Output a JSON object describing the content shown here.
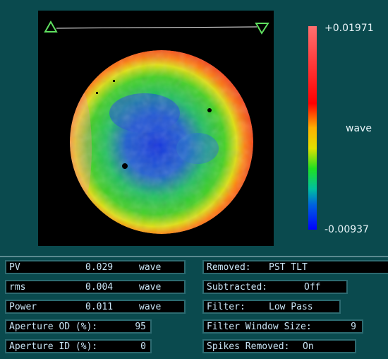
{
  "map": {
    "scale_max": "+0.01971",
    "scale_min": "-0.00937",
    "scale_unit": "wave"
  },
  "results": [
    {
      "label": "PV",
      "value": "0.029",
      "unit": "wave"
    },
    {
      "label": "rms",
      "value": "0.004",
      "unit": "wave"
    },
    {
      "label": "Power",
      "value": "0.011",
      "unit": "wave"
    },
    {
      "label": "Aperture OD (%):",
      "value": "95"
    },
    {
      "label": "Aperture ID (%):",
      "value": "0"
    }
  ],
  "settings": [
    {
      "label": "Removed:",
      "value": "PST TLT"
    },
    {
      "label": "Subtracted:",
      "value": "Off"
    },
    {
      "label": "Filter:",
      "value": "Low Pass"
    },
    {
      "label": "Filter Window Size:",
      "value": "9"
    },
    {
      "label": "Spikes Removed:",
      "value": "On"
    }
  ]
}
